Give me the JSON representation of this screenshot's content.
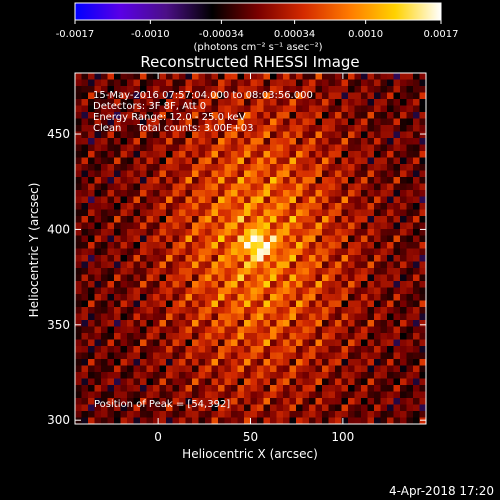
{
  "colorbar": {
    "ticks": [
      "-0.0017",
      "-0.0010",
      "-0.00034",
      "0.00034",
      "0.0010",
      "0.0017"
    ],
    "tick_values": [
      -0.0017,
      -0.001,
      -0.00034,
      0.00034,
      0.001,
      0.0017
    ],
    "range": [
      -0.0017,
      0.0017
    ],
    "units_label": "(photons cm⁻² s⁻¹ asec⁻²)",
    "colormap": [
      "#0000ff",
      "#5a00e6",
      "#4b0f86",
      "#000000",
      "#7a0000",
      "#d42a00",
      "#ff7a00",
      "#ffd200",
      "#ffffff"
    ]
  },
  "chart_data": {
    "type": "heatmap",
    "title": "Reconstructed RHESSI Image",
    "xlabel": "Heliocentric X (arcsec)",
    "ylabel": "Heliocentric Y (arcsec)",
    "xlim": [
      -45,
      145
    ],
    "ylim": [
      298,
      482
    ],
    "x_ticks": [
      0,
      50,
      100
    ],
    "y_ticks": [
      300,
      350,
      400,
      450
    ],
    "peak": {
      "x": 54,
      "y": 392
    },
    "annotations": [
      "15-May-2016 07:57:04.000 to 08:03:56.000",
      "Detectors: 3F 8F, Att 0",
      "Energy Range: 12.0 - 25.0 keV",
      "Clean     Total counts: 3.00E+03"
    ],
    "peak_label": "Position of Peak = [54,392]"
  },
  "footer": {
    "timestamp": "4-Apr-2018 17:20"
  }
}
